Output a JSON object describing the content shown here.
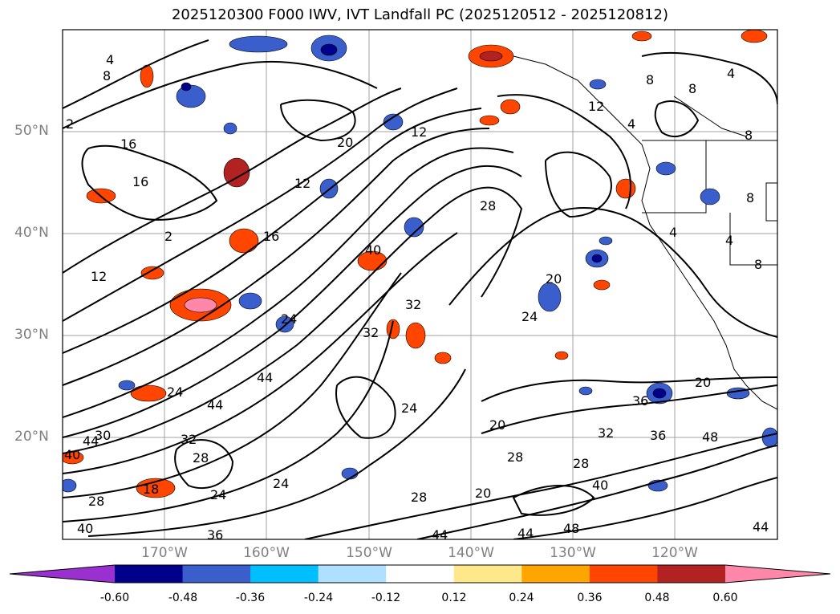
{
  "title": "2025120300 F000 IWV, IVT Landfall PC (2025120512 - 2025120812)",
  "lat_ticks": [
    "50°N",
    "40°N",
    "30°N",
    "20°N"
  ],
  "lon_ticks": [
    "170°W",
    "160°W",
    "150°W",
    "140°W",
    "130°W",
    "120°W"
  ],
  "colorbar": {
    "ticks": [
      "-0.60",
      "-0.48",
      "-0.36",
      "-0.24",
      "-0.12",
      "0.12",
      "0.24",
      "0.36",
      "0.48",
      "0.60"
    ],
    "colors": [
      "#9b30d0",
      "#00008b",
      "#3a5fcd",
      "#00bfff",
      "#b0e0ff",
      "#ffffff",
      "#ffe88a",
      "#ffa500",
      "#ff4500",
      "#b22222",
      "#ff88aa"
    ]
  },
  "contour_labels": [
    "4",
    "8",
    "2",
    "16",
    "12",
    "20",
    "12",
    "16",
    "12",
    "28",
    "40",
    "32",
    "32",
    "24",
    "44",
    "24",
    "28",
    "44",
    "24",
    "28",
    "32",
    "36",
    "20",
    "20",
    "36",
    "48",
    "28",
    "40",
    "44",
    "44",
    "48",
    "8",
    "8",
    "4",
    "4",
    "8",
    "36",
    "12",
    "28",
    "20",
    "24",
    "4"
  ],
  "colors": {
    "contour": "#000000",
    "grid": "#a0a0a0",
    "tick_text": "#808080"
  }
}
